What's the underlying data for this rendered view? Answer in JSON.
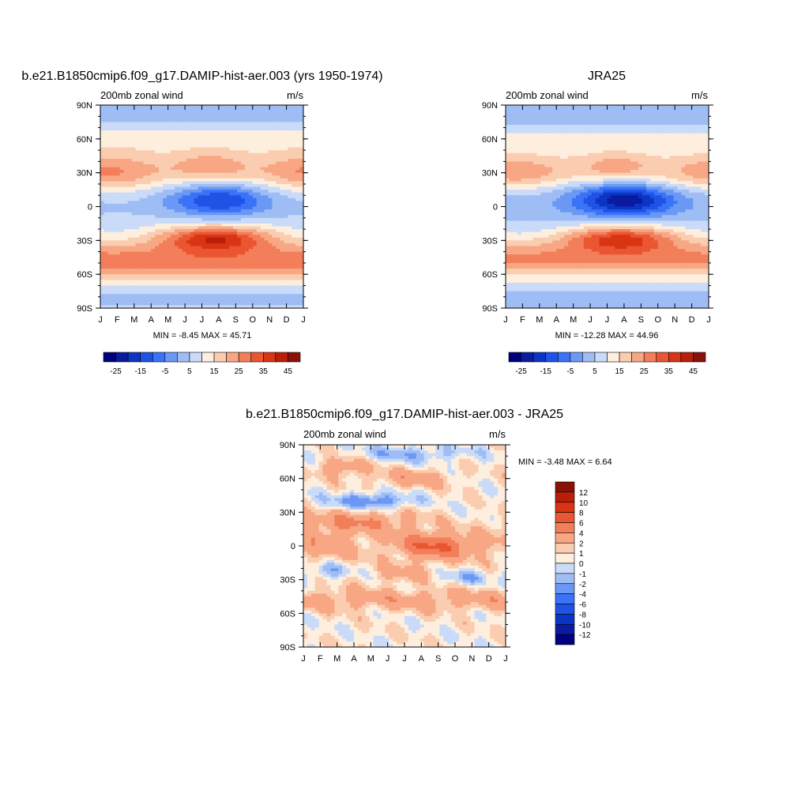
{
  "panels": [
    {
      "title": "b.e21.B1850cmip6.f09_g17.DAMIP-hist-aer.003 (yrs 1950-1974)",
      "left_label": "200mb zonal wind",
      "right_label": "m/s",
      "stats": "MIN =  -8.45 MAX =  45.71"
    },
    {
      "title": "JRA25",
      "left_label": "200mb zonal wind",
      "right_label": "m/s",
      "stats": "MIN = -12.28 MAX =  44.96"
    },
    {
      "title": "b.e21.B1850cmip6.f09_g17.DAMIP-hist-aer.003 - JRA25",
      "left_label": "200mb zonal wind",
      "right_label": "m/s",
      "stats": "MIN =  -3.48 MAX =   6.64"
    }
  ],
  "chart_data": [
    {
      "type": "heatmap",
      "title": "b.e21.B1850cmip6.f09_g17.DAMIP-hist-aer.003 (yrs 1950-1974)",
      "variable": "200mb zonal wind",
      "units": "m/s",
      "x_ticks": [
        "J",
        "F",
        "M",
        "A",
        "M",
        "J",
        "J",
        "A",
        "S",
        "O",
        "N",
        "D",
        "J"
      ],
      "y_ticks": [
        "90N",
        "60N",
        "30N",
        "0",
        "30S",
        "60S",
        "90S"
      ],
      "ylim": [
        -90,
        90
      ],
      "min": -8.45,
      "max": 45.71,
      "colorbar": {
        "levels": [
          -30,
          -25,
          -20,
          -15,
          -10,
          -5,
          0,
          5,
          10,
          15,
          20,
          25,
          30,
          35,
          40,
          45,
          50
        ],
        "labels": [
          "-25",
          "-15",
          "-5",
          "5",
          "15",
          "25",
          "35",
          "45"
        ],
        "colors": [
          "#00007f",
          "#0a1ba0",
          "#0d35c3",
          "#1f53e6",
          "#3a73f8",
          "#6a98f4",
          "#9fbdf5",
          "#c9dbf8",
          "#fdeede",
          "#fbcdb0",
          "#f8a784",
          "#f37e5a",
          "#ea5532",
          "#d93414",
          "#b81f0a",
          "#8a1108"
        ]
      },
      "features": [
        {
          "name": "NH subtropical jet core",
          "lat": 30,
          "months": [
            "Dec",
            "Jan",
            "Feb"
          ],
          "value": 45
        },
        {
          "name": "SH subtropical jet core",
          "lat": -28,
          "months": [
            "Jun",
            "Jul",
            "Aug"
          ],
          "value": 45
        },
        {
          "name": "SH midlatitude jet",
          "lat": -48,
          "months": [
            "all"
          ],
          "value": 30
        },
        {
          "name": "tropical easterlies",
          "lat": 5,
          "months": [
            "Jun",
            "Jul",
            "Aug"
          ],
          "value": -5
        }
      ]
    },
    {
      "type": "heatmap",
      "title": "JRA25",
      "variable": "200mb zonal wind",
      "units": "m/s",
      "x_ticks": [
        "J",
        "F",
        "M",
        "A",
        "M",
        "J",
        "J",
        "A",
        "S",
        "O",
        "N",
        "D",
        "J"
      ],
      "y_ticks": [
        "90N",
        "60N",
        "30N",
        "0",
        "30S",
        "60S",
        "90S"
      ],
      "ylim": [
        -90,
        90
      ],
      "min": -12.28,
      "max": 44.96,
      "colorbar": {
        "levels": [
          -30,
          -25,
          -20,
          -15,
          -10,
          -5,
          0,
          5,
          10,
          15,
          20,
          25,
          30,
          35,
          40,
          45,
          50
        ],
        "labels": [
          "-25",
          "-15",
          "-5",
          "5",
          "15",
          "25",
          "35",
          "45"
        ],
        "colors": [
          "#00007f",
          "#0a1ba0",
          "#0d35c3",
          "#1f53e6",
          "#3a73f8",
          "#6a98f4",
          "#9fbdf5",
          "#c9dbf8",
          "#fdeede",
          "#fbcdb0",
          "#f8a784",
          "#f37e5a",
          "#ea5532",
          "#d93414",
          "#b81f0a",
          "#8a1108"
        ]
      },
      "features": [
        {
          "name": "NH subtropical jet core",
          "lat": 30,
          "months": [
            "Dec",
            "Jan",
            "Feb"
          ],
          "value": 45
        },
        {
          "name": "SH subtropical jet core",
          "lat": -28,
          "months": [
            "Jun",
            "Jul",
            "Aug"
          ],
          "value": 40
        },
        {
          "name": "SH midlatitude jet",
          "lat": -45,
          "months": [
            "all"
          ],
          "value": 30
        },
        {
          "name": "tropical easterlies",
          "lat": 5,
          "months": [
            "Jun",
            "Jul",
            "Aug"
          ],
          "value": -10
        }
      ]
    },
    {
      "type": "heatmap",
      "title": "b.e21.B1850cmip6.f09_g17.DAMIP-hist-aer.003 - JRA25",
      "variable": "200mb zonal wind",
      "units": "m/s",
      "x_ticks": [
        "J",
        "F",
        "M",
        "A",
        "M",
        "J",
        "J",
        "A",
        "S",
        "O",
        "N",
        "D",
        "J"
      ],
      "y_ticks": [
        "90N",
        "60N",
        "30N",
        "0",
        "30S",
        "60S",
        "90S"
      ],
      "ylim": [
        -90,
        90
      ],
      "min": -3.48,
      "max": 6.64,
      "colorbar": {
        "levels": [
          -14,
          -12,
          -10,
          -8,
          -6,
          -4,
          -2,
          -1,
          0,
          1,
          2,
          4,
          6,
          8,
          10,
          12,
          14
        ],
        "labels": [
          "12",
          "10",
          "8",
          "6",
          "4",
          "2",
          "1",
          "0",
          "-1",
          "-2",
          "-4",
          "-6",
          "-8",
          "-10",
          "-12"
        ],
        "colors": [
          "#00007f",
          "#0a1ba0",
          "#0d35c3",
          "#1f53e6",
          "#3a73f8",
          "#6a98f4",
          "#9fbdf5",
          "#c9dbf8",
          "#fdeede",
          "#fbcdb0",
          "#f8a784",
          "#f37e5a",
          "#ea5532",
          "#d93414",
          "#b81f0a",
          "#8a1108"
        ]
      },
      "features": [
        {
          "name": "positive anomaly",
          "lat": 0,
          "months": [
            "Jul",
            "Aug",
            "Sep"
          ],
          "value": 6
        },
        {
          "name": "negative anomaly",
          "lat": 40,
          "months": [
            "Mar",
            "Apr",
            "May"
          ],
          "value": -3
        },
        {
          "name": "positive anomaly band",
          "lat": -48,
          "months": [
            "all"
          ],
          "value": 3
        }
      ]
    }
  ]
}
